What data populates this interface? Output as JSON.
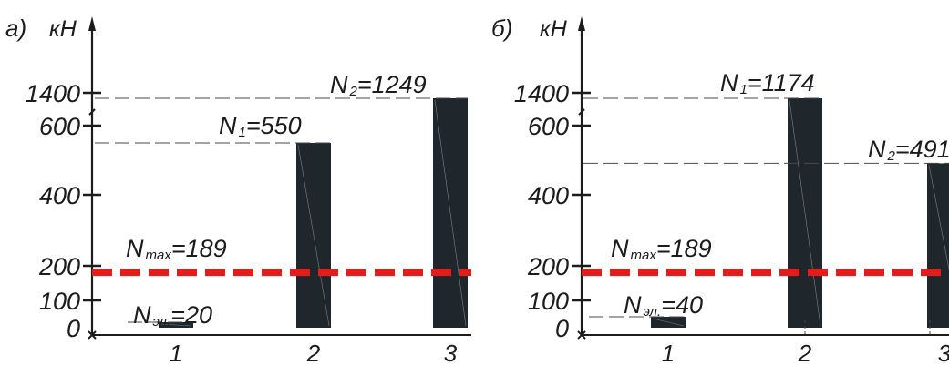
{
  "chart_data": [
    {
      "type": "bar",
      "panel_label": "а)",
      "unit": "кН",
      "categories": [
        "1",
        "2",
        "3"
      ],
      "y_ticks": [
        "0",
        "100",
        "200",
        "400",
        "600",
        "1400"
      ],
      "y_scale": "broken (gap between 600 and 1400)",
      "series": [
        {
          "values": [
            20,
            550,
            1249
          ],
          "color": "#1f262c"
        }
      ],
      "bar_labels": [
        {
          "main": "N",
          "sub": "эл.",
          "text": "=20"
        },
        {
          "main": "N",
          "sub": "1",
          "text": "=550"
        },
        {
          "main": "N",
          "sub": "2",
          "text": "=1249"
        }
      ],
      "reference_line": {
        "main": "N",
        "sub": "max",
        "text": "=189",
        "value": 189,
        "color": "#e51c1c",
        "style": "dashed"
      }
    },
    {
      "type": "bar",
      "panel_label": "б)",
      "unit": "кН",
      "categories": [
        "1",
        "2",
        "3"
      ],
      "y_ticks": [
        "0",
        "100",
        "200",
        "400",
        "600",
        "1400"
      ],
      "y_scale": "broken (gap between 600 and 1400)",
      "series": [
        {
          "values": [
            40,
            1174,
            491
          ],
          "color": "#1f262c"
        }
      ],
      "bar_labels": [
        {
          "main": "N",
          "sub": "эл.",
          "text": "=40"
        },
        {
          "main": "N",
          "sub": "1",
          "text": "=1174"
        },
        {
          "main": "N",
          "sub": "2",
          "text": "=491"
        }
      ],
      "reference_line": {
        "main": "N",
        "sub": "max",
        "text": "=189",
        "value": 189,
        "color": "#e51c1c",
        "style": "dashed"
      }
    }
  ]
}
